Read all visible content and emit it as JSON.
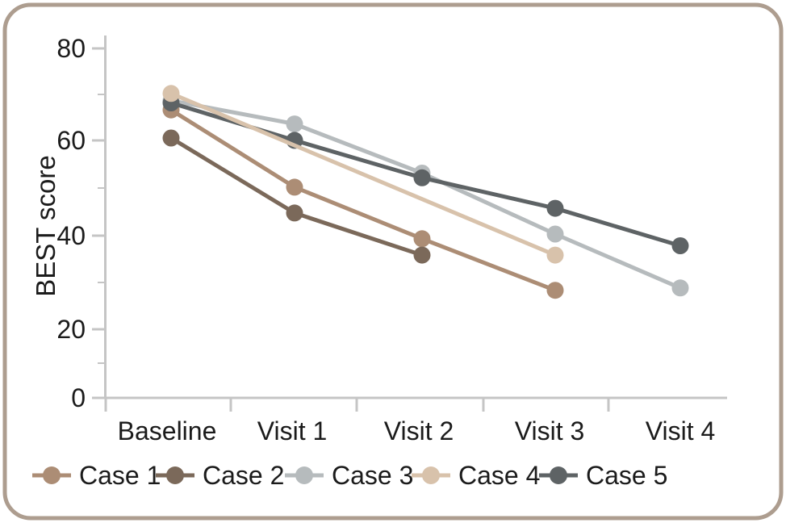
{
  "chart_data": {
    "type": "line",
    "title": "",
    "xlabel": "",
    "ylabel": "BEST score",
    "categories": [
      "Baseline",
      "Visit 1",
      "Visit 2",
      "Visit 3",
      "Visit 4"
    ],
    "y_axis": {
      "tick_labels": [
        "80",
        "60",
        "40",
        "20",
        "0"
      ],
      "range": [
        0,
        80
      ]
    },
    "grid": false,
    "legend_position": "bottom",
    "series": [
      {
        "name": "Case 1",
        "color": "#ac8d75",
        "values": [
          67,
          50.5,
          39.5,
          28.5,
          null
        ]
      },
      {
        "name": "Case 2",
        "color": "#7b695a",
        "values": [
          61,
          45,
          36,
          null,
          null
        ]
      },
      {
        "name": "Case 3",
        "color": "#b6bbbd",
        "values": [
          69,
          64,
          53.5,
          40.5,
          29
        ]
      },
      {
        "name": "Case 4",
        "color": "#d8c2ab",
        "values": [
          70.5,
          null,
          null,
          36,
          null
        ]
      },
      {
        "name": "Case 5",
        "color": "#5e6365",
        "values": [
          68.5,
          60.5,
          52.5,
          46,
          38
        ]
      }
    ]
  },
  "theme": {
    "background": "#ffffff",
    "border_color": "#ad9d8f",
    "axis_color": "#c5c5c5",
    "text_color": "#1b1b1b"
  }
}
